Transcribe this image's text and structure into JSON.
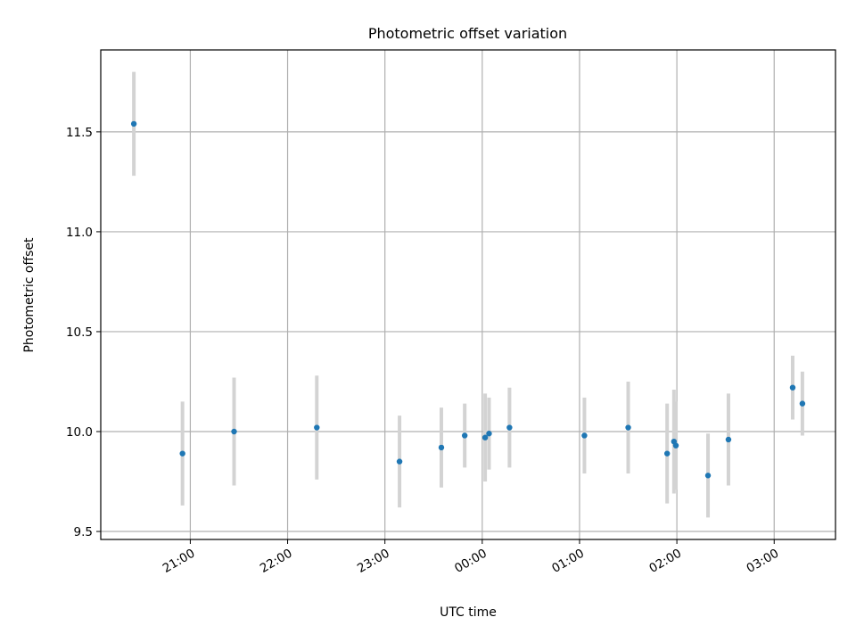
{
  "chart_data": {
    "type": "scatter",
    "title": "Photometric offset variation",
    "xlabel": "UTC time",
    "ylabel": "Photometric offset",
    "x_tick_labels": [
      "21:00",
      "22:00",
      "23:00",
      "00:00",
      "01:00",
      "02:00",
      "03:00"
    ],
    "y_tick_labels": [
      "9.5",
      "10.0",
      "10.5",
      "11.0",
      "11.5"
    ],
    "x_ticks_hours": [
      21,
      22,
      23,
      24,
      25,
      26,
      27
    ],
    "y_ticks": [
      9.5,
      10.0,
      10.5,
      11.0,
      11.5
    ],
    "xlim_hours": [
      20.08,
      27.63
    ],
    "ylim": [
      9.46,
      11.91
    ],
    "grid": true,
    "marker_color": "#1f77b4",
    "errorbar_color": "#d3d3d3",
    "points": [
      {
        "time": "20:25",
        "hours": 20.42,
        "y": 11.54,
        "err": 0.26
      },
      {
        "time": "20:55",
        "hours": 20.92,
        "y": 9.89,
        "err": 0.26
      },
      {
        "time": "21:27",
        "hours": 21.45,
        "y": 10.0,
        "err": 0.27
      },
      {
        "time": "22:18",
        "hours": 22.3,
        "y": 10.02,
        "err": 0.26
      },
      {
        "time": "23:09",
        "hours": 23.15,
        "y": 9.85,
        "err": 0.23
      },
      {
        "time": "23:35",
        "hours": 23.58,
        "y": 9.92,
        "err": 0.2
      },
      {
        "time": "23:49",
        "hours": 23.82,
        "y": 9.98,
        "err": 0.16
      },
      {
        "time": "00:02",
        "hours": 24.03,
        "y": 9.97,
        "err": 0.22
      },
      {
        "time": "00:04",
        "hours": 24.07,
        "y": 9.99,
        "err": 0.18
      },
      {
        "time": "00:17",
        "hours": 24.28,
        "y": 10.02,
        "err": 0.2
      },
      {
        "time": "01:03",
        "hours": 25.05,
        "y": 9.98,
        "err": 0.19
      },
      {
        "time": "01:30",
        "hours": 25.5,
        "y": 10.02,
        "err": 0.23
      },
      {
        "time": "01:54",
        "hours": 25.9,
        "y": 9.89,
        "err": 0.25
      },
      {
        "time": "01:58",
        "hours": 25.97,
        "y": 9.95,
        "err": 0.26
      },
      {
        "time": "01:59",
        "hours": 25.99,
        "y": 9.93,
        "err": 0.22
      },
      {
        "time": "02:19",
        "hours": 26.32,
        "y": 9.78,
        "err": 0.21
      },
      {
        "time": "02:32",
        "hours": 26.53,
        "y": 9.96,
        "err": 0.23
      },
      {
        "time": "03:11",
        "hours": 27.19,
        "y": 10.22,
        "err": 0.16
      },
      {
        "time": "03:17",
        "hours": 27.29,
        "y": 10.14,
        "err": 0.16
      }
    ]
  }
}
